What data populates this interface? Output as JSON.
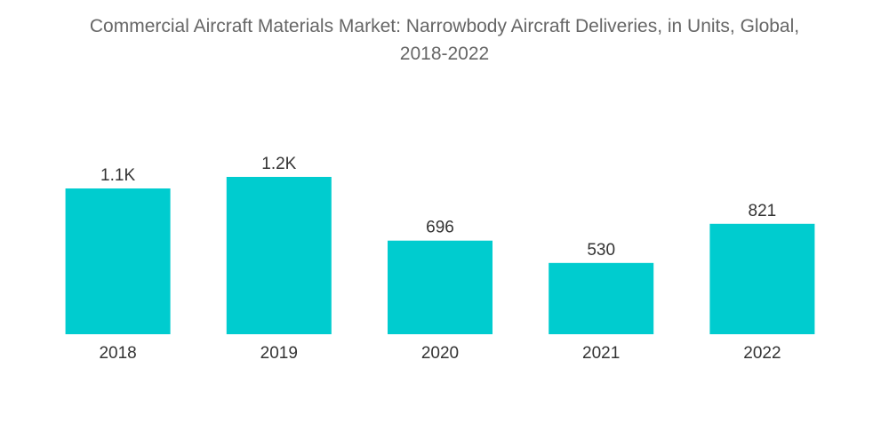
{
  "chart_data": {
    "type": "bar",
    "title_lines": [
      "Commercial Aircraft Materials Market: Narrowbody Aircraft Deliveries, in Units, Global,",
      "2018-2022"
    ],
    "categories": [
      "2018",
      "2019",
      "2020",
      "2021",
      "2022"
    ],
    "values": [
      1084,
      1170,
      696,
      530,
      821
    ],
    "data_labels": [
      "1.1K",
      "1.2K",
      "696",
      "530",
      "821"
    ],
    "xlabel": "",
    "ylabel": "",
    "ylim": [
      0,
      1170
    ],
    "grid": false,
    "legend": "none",
    "colors": {
      "bar": "#00cccf",
      "title": "#666666",
      "labels": "#333333"
    }
  }
}
